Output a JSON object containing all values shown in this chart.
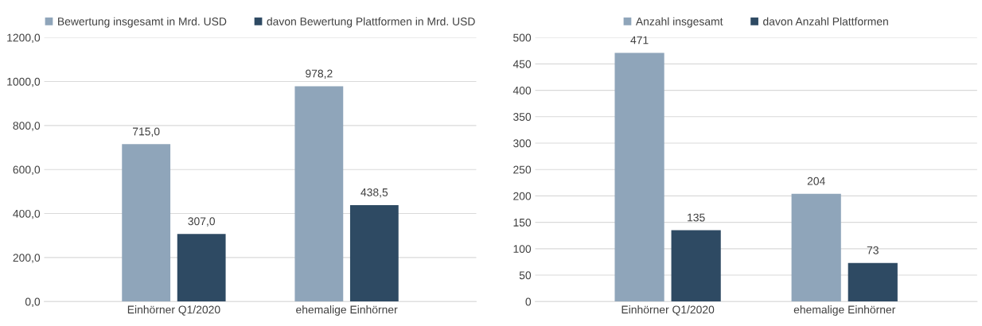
{
  "chart_data": [
    {
      "type": "bar",
      "categories": [
        "Einhörner Q1/2020",
        "ehemalige Einhörner"
      ],
      "series": [
        {
          "name": "Bewertung insgesamt in Mrd. USD",
          "color": "#8fa5ba",
          "values": [
            715.0,
            978.2
          ],
          "value_labels": [
            "715,0",
            "978,2"
          ]
        },
        {
          "name": "davon Bewertung Plattformen in Mrd. USD",
          "color": "#2e4a63",
          "values": [
            307.0,
            438.5
          ],
          "value_labels": [
            "307,0",
            "438,5"
          ]
        }
      ],
      "ylim": [
        0,
        1200
      ],
      "yticks": [
        {
          "value": 0,
          "label": "0,0"
        },
        {
          "value": 200,
          "label": "200,0"
        },
        {
          "value": 400,
          "label": "400,0"
        },
        {
          "value": 600,
          "label": "600,0"
        },
        {
          "value": 800,
          "label": "800,0"
        },
        {
          "value": 1000,
          "label": "1000,0"
        },
        {
          "value": 1200,
          "label": "1200,0"
        }
      ],
      "grid": "y",
      "legend": "top"
    },
    {
      "type": "bar",
      "categories": [
        "Einhörner Q1/2020",
        "ehemalige Einhörner"
      ],
      "series": [
        {
          "name": "Anzahl insgesamt",
          "color": "#8fa5ba",
          "values": [
            471,
            204
          ]
        },
        {
          "name": "davon Anzahl Plattformen",
          "color": "#2e4a63",
          "values": [
            135,
            73
          ]
        }
      ],
      "ylim": [
        0,
        500
      ],
      "yticks": [
        0,
        50,
        100,
        150,
        200,
        250,
        300,
        350,
        400,
        450,
        500
      ],
      "grid": "y",
      "legend": "top",
      "data_labels": true
    }
  ]
}
